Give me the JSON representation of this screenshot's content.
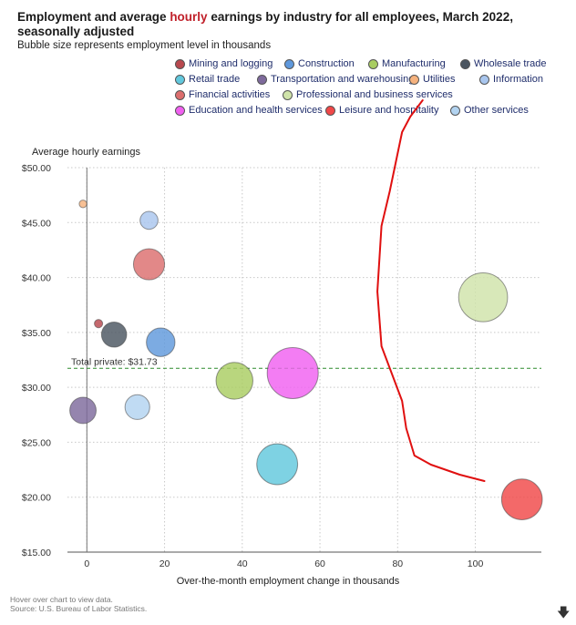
{
  "header": {
    "title_before": "Employment and average ",
    "title_highlight": "hourly",
    "title_after": " earnings by industry for all employees, March 2022, seasonally adjusted",
    "subtitle": "Bubble size represents employment level in thousands"
  },
  "colors": {
    "highlight": "#c0202a",
    "reference_line": "#2e8b2e",
    "annotation_stroke": "#e01010"
  },
  "footer": {
    "hover_note": "Hover over chart to view data.",
    "source": "Source: U.S. Bureau of Labor Statistics.",
    "download_icon": "download-arrow-icon"
  },
  "chart_data": {
    "type": "scatter",
    "variant": "bubble",
    "title": "Employment and average hourly earnings by industry for all employees, March 2022, seasonally adjusted",
    "subtitle": "Bubble size represents employment level in thousands",
    "xlabel": "Over-the-month employment change in thousands",
    "ylabel": "Average hourly earnings",
    "xlim": [
      -5,
      117
    ],
    "ylim": [
      15,
      50
    ],
    "x_ticks": [
      0,
      20,
      40,
      60,
      80,
      100
    ],
    "x_tick_labels": [
      "0",
      "20",
      "40",
      "60",
      "80",
      "100"
    ],
    "y_ticks": [
      15,
      20,
      25,
      30,
      35,
      40,
      45,
      50
    ],
    "y_tick_labels": [
      "$15.00",
      "$20.00",
      "$25.00",
      "$30.00",
      "$35.00",
      "$40.00",
      "$45.00",
      "$50.00"
    ],
    "grid": true,
    "legend_position": "top",
    "reference_line": {
      "y": 31.73,
      "label": "Total private: $31.73"
    },
    "series": [
      {
        "name": "Mining and logging",
        "x": 3,
        "y": 35.8,
        "employment": 636,
        "color": "#b8484e"
      },
      {
        "name": "Construction",
        "x": 19,
        "y": 34.1,
        "employment": 7587,
        "color": "#5f98dc"
      },
      {
        "name": "Manufacturing",
        "x": 38,
        "y": 30.6,
        "employment": 12611,
        "color": "#a9cd62"
      },
      {
        "name": "Wholesale trade",
        "x": 7,
        "y": 34.8,
        "employment": 5874,
        "color": "#4b5560"
      },
      {
        "name": "Retail trade",
        "x": 49,
        "y": 23.0,
        "employment": 15527,
        "color": "#62c8dd"
      },
      {
        "name": "Transportation and warehousing",
        "x": -1,
        "y": 27.9,
        "employment": 6442,
        "color": "#7e6a9c"
      },
      {
        "name": "Utilities",
        "x": -1,
        "y": 46.7,
        "employment": 537,
        "color": "#f5b27e"
      },
      {
        "name": "Information",
        "x": 16,
        "y": 45.2,
        "employment": 2983,
        "color": "#a9c6ee"
      },
      {
        "name": "Financial activities",
        "x": 16,
        "y": 41.2,
        "employment": 9006,
        "color": "#dc6e6e"
      },
      {
        "name": "Professional and business services",
        "x": 102,
        "y": 38.2,
        "employment": 22236,
        "color": "#cfe3a9"
      },
      {
        "name": "Education and health services",
        "x": 53,
        "y": 31.3,
        "employment": 24215,
        "color": "#f060f0"
      },
      {
        "name": "Leisure and hospitality",
        "x": 112,
        "y": 19.8,
        "employment": 15392,
        "color": "#f04848"
      },
      {
        "name": "Other services",
        "x": 13,
        "y": 28.2,
        "employment": 5673,
        "color": "#b2d3f0"
      }
    ]
  }
}
